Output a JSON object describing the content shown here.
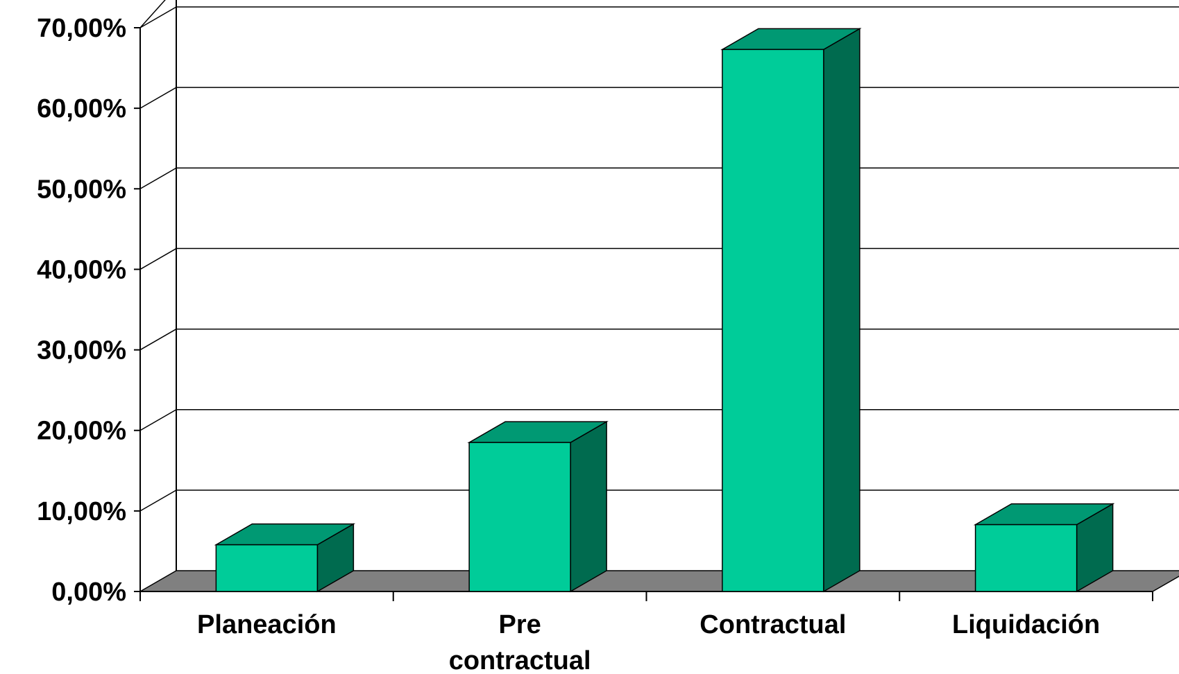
{
  "chart_data": {
    "type": "bar",
    "categories": [
      "Planeación",
      "Pre contractual",
      "Contractual",
      "Liquidación"
    ],
    "category_label_lines": [
      [
        "Planeación"
      ],
      [
        "Pre",
        "contractual"
      ],
      [
        "Contractual"
      ],
      [
        "Liquidación"
      ]
    ],
    "values": [
      5.8,
      18.5,
      67.3,
      8.3
    ],
    "ylim": [
      0,
      70
    ],
    "ytick_values": [
      0,
      10,
      20,
      30,
      40,
      50,
      60,
      70
    ],
    "ytick_labels": [
      "0,00%",
      "10,00%",
      "20,00%",
      "30,00%",
      "40,00%",
      "50,00%",
      "60,00%",
      "70,00%"
    ],
    "grid": true,
    "style": "3d",
    "colors": {
      "bar_front": "#00CC99",
      "bar_top": "#009973",
      "bar_side": "#006B4F",
      "floor": "#808080",
      "grid": "#000000"
    }
  }
}
